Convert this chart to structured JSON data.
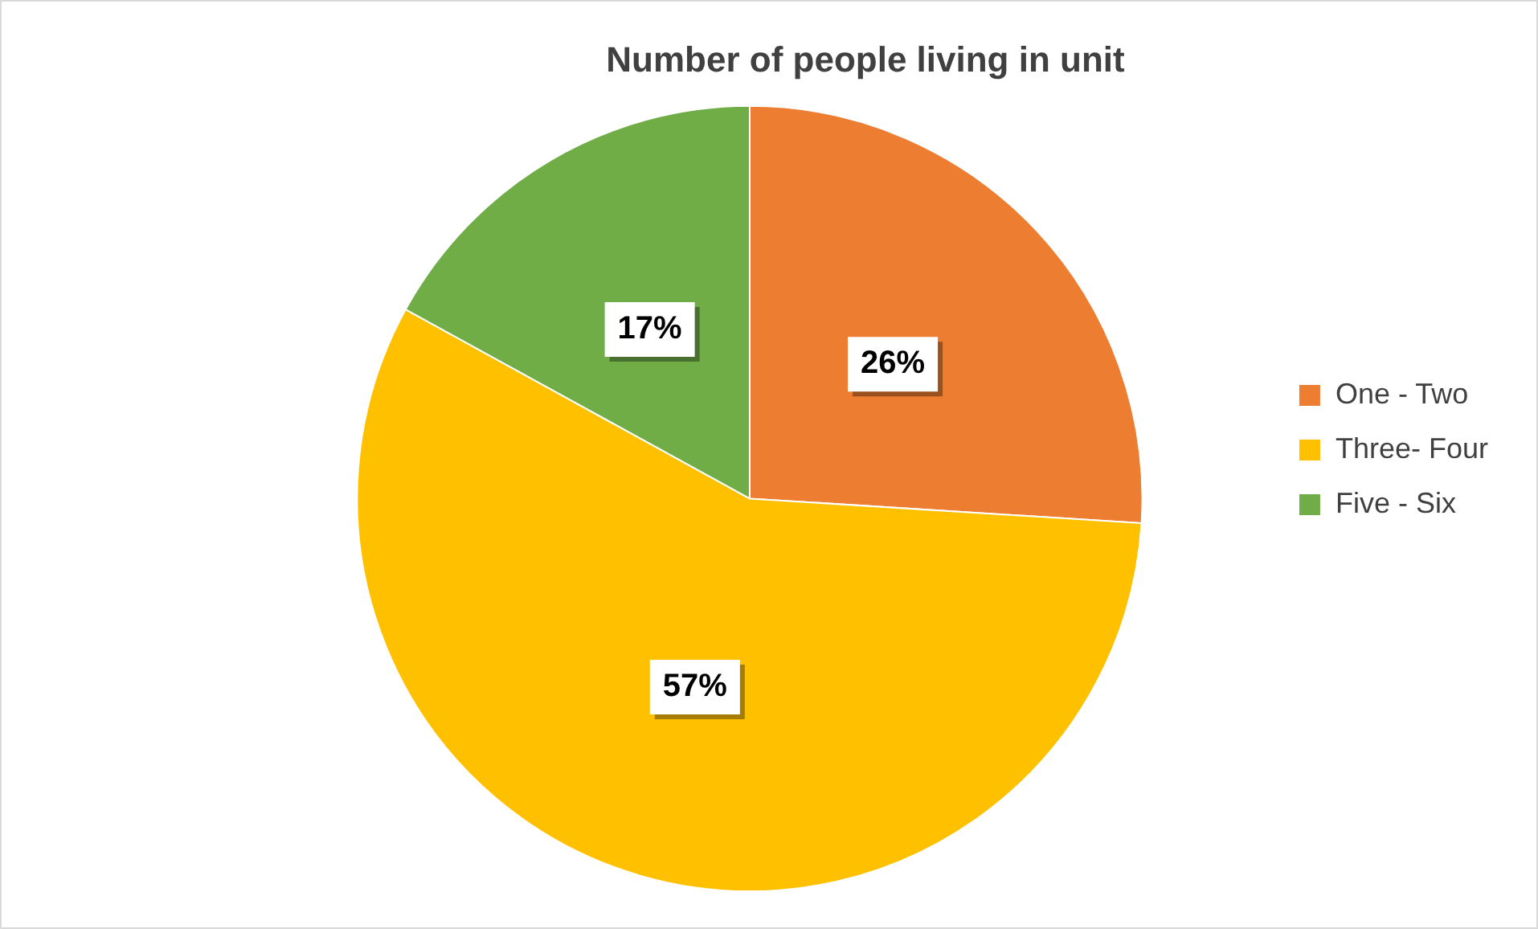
{
  "chart_data": {
    "type": "pie",
    "title": "Number of people living in unit",
    "categories": [
      "One - Two",
      "Three- Four",
      "Five - Six"
    ],
    "values": [
      26,
      57,
      17
    ],
    "colors": [
      "#ed7d31",
      "#ffc000",
      "#70ad47"
    ],
    "value_labels": [
      "26%",
      "57%",
      "17%"
    ],
    "legend": "right"
  }
}
